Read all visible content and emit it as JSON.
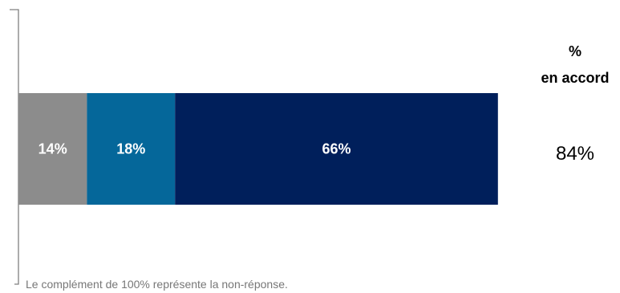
{
  "chart_data": {
    "type": "bar",
    "orientation": "horizontal-stacked",
    "categories": [
      ""
    ],
    "series": [
      {
        "values": [
          14
        ],
        "label": "14%",
        "color": "#8c8c8c"
      },
      {
        "values": [
          18
        ],
        "label": "18%",
        "color": "#05679a"
      },
      {
        "values": [
          66
        ],
        "label": "66%",
        "color": "#001f5b"
      }
    ],
    "xlim": [
      0,
      100
    ],
    "summary_header": [
      "%",
      "en accord"
    ],
    "summary_value": "84%",
    "footnote": "Le complément  de 100% représente la non-réponse."
  }
}
